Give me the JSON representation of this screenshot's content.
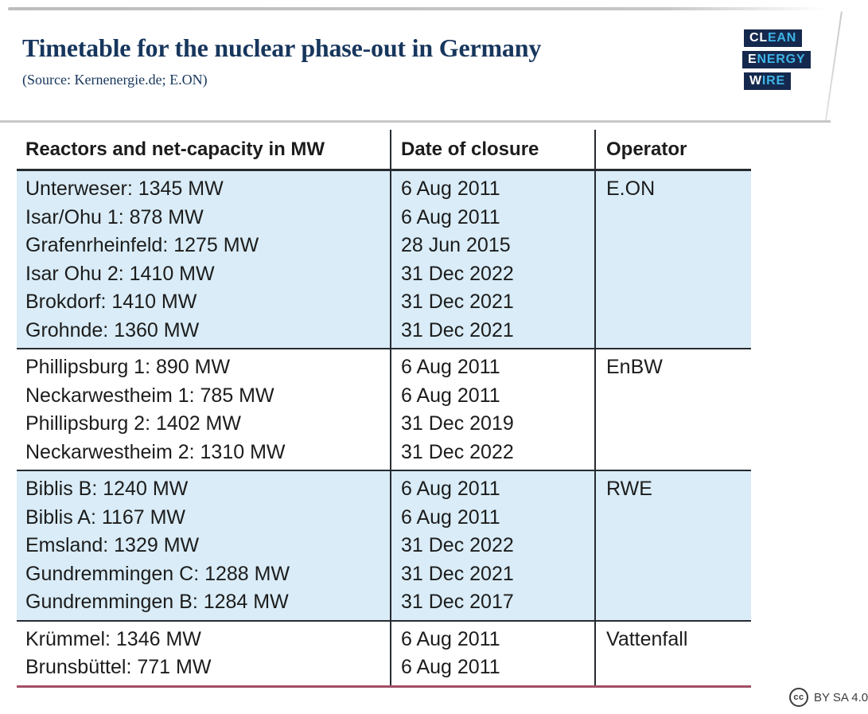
{
  "header": {
    "title": "Timetable for the nuclear phase-out in Germany",
    "source": "(Source: Kernenergie.de; E.ON)",
    "logo": [
      {
        "white": "CL",
        "blue": "EAN"
      },
      {
        "white": "E",
        "blue": "NERGY"
      },
      {
        "white": "W",
        "blue": "IRE"
      }
    ]
  },
  "table": {
    "columns": [
      "Reactors and net-capacity in MW",
      "Date of closure",
      "Operator"
    ],
    "groups": [
      {
        "operator": "E.ON",
        "shaded": true,
        "rows": [
          {
            "reactor": "Unterweser: 1345 MW",
            "date": "6 Aug 2011"
          },
          {
            "reactor": "Isar/Ohu 1: 878 MW",
            "date": "6 Aug 2011"
          },
          {
            "reactor": "Grafenrheinfeld: 1275 MW",
            "date": "28 Jun 2015"
          },
          {
            "reactor": "Isar Ohu 2: 1410 MW",
            "date": "31 Dec 2022"
          },
          {
            "reactor": "Brokdorf: 1410 MW",
            "date": "31 Dec 2021"
          },
          {
            "reactor": "Grohnde: 1360 MW",
            "date": "31 Dec 2021"
          }
        ]
      },
      {
        "operator": "EnBW",
        "shaded": false,
        "rows": [
          {
            "reactor": "Phillipsburg 1: 890 MW",
            "date": "6 Aug 2011"
          },
          {
            "reactor": "Neckarwestheim 1: 785 MW",
            "date": "6 Aug 2011"
          },
          {
            "reactor": "Phillipsburg 2: 1402 MW",
            "date": "31 Dec 2019"
          },
          {
            "reactor": "Neckarwestheim 2: 1310 MW",
            "date": "31 Dec 2022"
          }
        ]
      },
      {
        "operator": "RWE",
        "shaded": true,
        "rows": [
          {
            "reactor": "Biblis B: 1240 MW",
            "date": "6 Aug 2011"
          },
          {
            "reactor": "Biblis A: 1167 MW",
            "date": "6 Aug 2011"
          },
          {
            "reactor": "Emsland: 1329 MW",
            "date": "31 Dec 2022"
          },
          {
            "reactor": "Gundremmingen C: 1288 MW",
            "date": "31 Dec 2021"
          },
          {
            "reactor": "Gundremmingen B: 1284 MW",
            "date": "31 Dec 2017"
          }
        ]
      },
      {
        "operator": "Vattenfall",
        "shaded": false,
        "rows": [
          {
            "reactor": "Krümmel: 1346 MW",
            "date": "6 Aug 2011"
          },
          {
            "reactor": "Brunsbüttel: 771 MW",
            "date": "6 Aug 2011"
          }
        ]
      }
    ]
  },
  "footer": {
    "cc": "cc",
    "license": "BY SA 4.0"
  },
  "colors": {
    "title_navy": "#17365d",
    "row_shaded_blue": "#d9ecf7",
    "table_line": "#262b30",
    "bottom_red_rule": "#a34f66",
    "logo_box_navy": "#15294e",
    "logo_accent_blue": "#3fb4e6",
    "license_gray": "#3c3c3c"
  },
  "chart_data": {
    "type": "table",
    "title": "Timetable for the nuclear phase-out in Germany",
    "source": "(Source: Kernenergie.de; E.ON)",
    "columns": [
      "Reactors and net-capacity in MW",
      "Date of closure",
      "Operator"
    ],
    "rows": [
      [
        "Unterweser: 1345 MW",
        "6 Aug 2011",
        "E.ON"
      ],
      [
        "Isar/Ohu 1: 878 MW",
        "6 Aug 2011",
        "E.ON"
      ],
      [
        "Grafenrheinfeld: 1275 MW",
        "28 Jun 2015",
        "E.ON"
      ],
      [
        "Isar Ohu 2: 1410 MW",
        "31 Dec 2022",
        "E.ON"
      ],
      [
        "Brokdorf: 1410 MW",
        "31 Dec 2021",
        "E.ON"
      ],
      [
        "Grohnde: 1360 MW",
        "31 Dec 2021",
        "E.ON"
      ],
      [
        "Phillipsburg 1: 890 MW",
        "6 Aug 2011",
        "EnBW"
      ],
      [
        "Neckarwestheim 1: 785 MW",
        "6 Aug 2011",
        "EnBW"
      ],
      [
        "Phillipsburg 2: 1402 MW",
        "31 Dec 2019",
        "EnBW"
      ],
      [
        "Neckarwestheim 2: 1310 MW",
        "31 Dec 2022",
        "EnBW"
      ],
      [
        "Biblis B: 1240 MW",
        "6 Aug 2011",
        "RWE"
      ],
      [
        "Biblis A: 1167 MW",
        "6 Aug 2011",
        "RWE"
      ],
      [
        "Emsland: 1329 MW",
        "31 Dec 2022",
        "RWE"
      ],
      [
        "Gundremmingen C: 1288 MW",
        "31 Dec 2021",
        "RWE"
      ],
      [
        "Gundremmingen B: 1284 MW",
        "31 Dec 2017",
        "RWE"
      ],
      [
        "Krümmel: 1346 MW",
        "6 Aug 2011",
        "Vattenfall"
      ],
      [
        "Brunsbüttel: 771 MW",
        "6 Aug 2011",
        "Vattenfall"
      ]
    ]
  }
}
